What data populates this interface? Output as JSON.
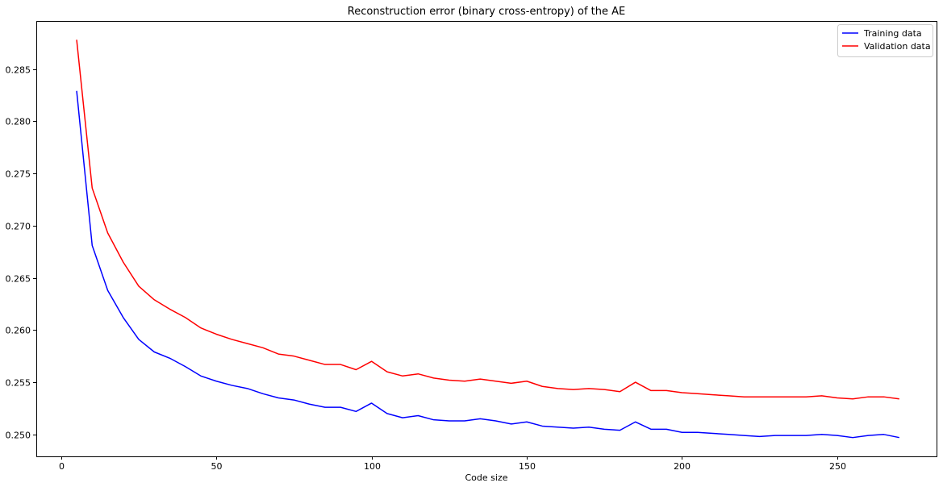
{
  "chart_data": {
    "type": "line",
    "title": "Reconstruction error (binary cross-entropy) of the AE",
    "xlabel": "Code size",
    "ylabel": "",
    "xlim": [
      -8,
      282
    ],
    "ylim": [
      0.2479,
      0.2896
    ],
    "xticks": [
      0,
      50,
      100,
      150,
      200,
      250
    ],
    "yticks": [
      0.25,
      0.255,
      0.26,
      0.265,
      0.27,
      0.275,
      0.28,
      0.285
    ],
    "ytick_labels": [
      "0.250",
      "0.255",
      "0.260",
      "0.265",
      "0.270",
      "0.275",
      "0.280",
      "0.285"
    ],
    "grid": false,
    "legend_position": "top-right",
    "x": [
      5,
      10,
      15,
      20,
      25,
      30,
      35,
      40,
      45,
      50,
      55,
      60,
      65,
      70,
      75,
      80,
      85,
      90,
      95,
      100,
      105,
      110,
      115,
      120,
      125,
      130,
      135,
      140,
      145,
      150,
      155,
      160,
      165,
      170,
      175,
      180,
      185,
      190,
      195,
      200,
      205,
      210,
      215,
      220,
      225,
      230,
      235,
      240,
      245,
      250,
      255,
      260,
      265,
      270
    ],
    "series": [
      {
        "name": "Training data",
        "color": "#0000ff",
        "values": [
          0.2829,
          0.2681,
          0.2638,
          0.2612,
          0.2591,
          0.2579,
          0.2573,
          0.2565,
          0.2556,
          0.2551,
          0.2547,
          0.2544,
          0.2539,
          0.2535,
          0.2533,
          0.2529,
          0.2526,
          0.2526,
          0.2522,
          0.253,
          0.252,
          0.2516,
          0.2518,
          0.2514,
          0.2513,
          0.2513,
          0.2515,
          0.2513,
          0.251,
          0.2512,
          0.2508,
          0.2507,
          0.2506,
          0.2507,
          0.2505,
          0.2504,
          0.2512,
          0.2505,
          0.2505,
          0.2502,
          0.2502,
          0.2501,
          0.25,
          0.2499,
          0.2498,
          0.2499,
          0.2499,
          0.2499,
          0.25,
          0.2499,
          0.2497,
          0.2499,
          0.25,
          0.2497
        ]
      },
      {
        "name": "Validation data",
        "color": "#ff0000",
        "values": [
          0.2878,
          0.2736,
          0.2693,
          0.2665,
          0.2642,
          0.2629,
          0.262,
          0.2612,
          0.2602,
          0.2596,
          0.2591,
          0.2587,
          0.2583,
          0.2577,
          0.2575,
          0.2571,
          0.2567,
          0.2567,
          0.2562,
          0.257,
          0.256,
          0.2556,
          0.2558,
          0.2554,
          0.2552,
          0.2551,
          0.2553,
          0.2551,
          0.2549,
          0.2551,
          0.2546,
          0.2544,
          0.2543,
          0.2544,
          0.2543,
          0.2541,
          0.255,
          0.2542,
          0.2542,
          0.254,
          0.2539,
          0.2538,
          0.2537,
          0.2536,
          0.2536,
          0.2536,
          0.2536,
          0.2536,
          0.2537,
          0.2535,
          0.2534,
          0.2536,
          0.2536,
          0.2534
        ]
      }
    ]
  }
}
